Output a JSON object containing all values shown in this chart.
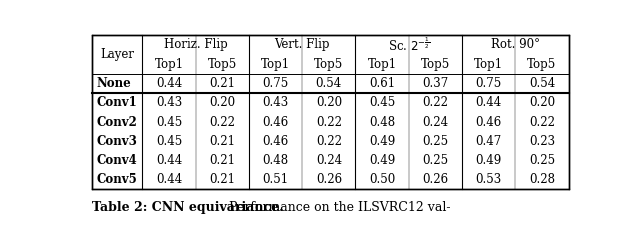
{
  "title_bold": "Table 2: CNN equivariance.",
  "title_normal": " Performance on the ILSVRC12 val-",
  "col_groups": [
    "Horiz. Flip",
    "Vert. Flip",
    "Sc. $2^{-\\frac{1}{2}}$",
    "Rot. 90°"
  ],
  "sub_cols": [
    "Top1",
    "Top5"
  ],
  "row_labels": [
    "None",
    "Conv1",
    "Conv2",
    "Conv3",
    "Conv4",
    "Conv5"
  ],
  "data": [
    [
      0.44,
      0.21,
      0.75,
      0.54,
      0.61,
      0.37,
      0.75,
      0.54
    ],
    [
      0.43,
      0.2,
      0.43,
      0.2,
      0.45,
      0.22,
      0.44,
      0.2
    ],
    [
      0.45,
      0.22,
      0.46,
      0.22,
      0.48,
      0.24,
      0.46,
      0.22
    ],
    [
      0.45,
      0.21,
      0.46,
      0.22,
      0.49,
      0.25,
      0.47,
      0.23
    ],
    [
      0.44,
      0.21,
      0.48,
      0.24,
      0.49,
      0.25,
      0.49,
      0.25
    ],
    [
      0.44,
      0.21,
      0.51,
      0.26,
      0.5,
      0.26,
      0.53,
      0.28
    ]
  ],
  "bg_color": "#ffffff",
  "text_color": "#000000",
  "font_size": 8.5,
  "caption_font_size": 9.0,
  "fig_width": 6.4,
  "fig_height": 2.47,
  "dpi": 100
}
